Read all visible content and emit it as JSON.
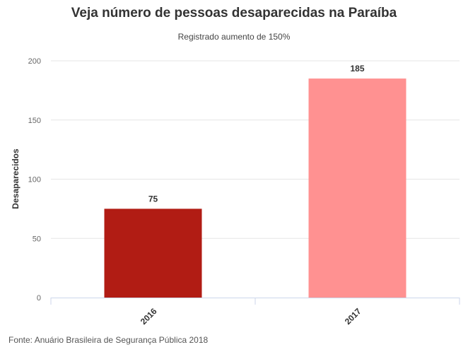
{
  "chart_data": {
    "type": "bar",
    "title": "Veja número de pessoas desaparecidas na Paraíba",
    "subtitle": "Registrado aumento de 150%",
    "xlabel": "",
    "ylabel": "Desaparecidos",
    "categories": [
      "2016",
      "2017"
    ],
    "values": [
      75,
      185
    ],
    "data_labels": [
      "75",
      "185"
    ],
    "colors": [
      "#b11c14",
      "#ff9191"
    ],
    "ylim": [
      0,
      200
    ],
    "yticks": [
      0,
      50,
      100,
      150,
      200
    ],
    "ytick_labels": [
      "0",
      "50",
      "100",
      "150",
      "200"
    ],
    "grid": true,
    "source": "Fonte: Anuário Brasileira de Segurança Pública 2018"
  }
}
